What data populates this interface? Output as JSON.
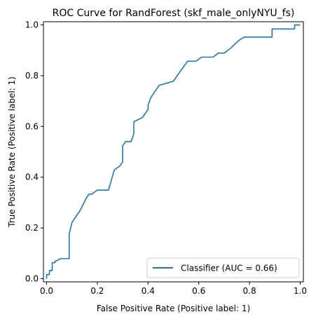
{
  "chart_data": {
    "type": "line",
    "title": "ROC Curve for RandForest (skf_male_onlyNYU_fs)",
    "xlabel": "False Positive Rate (Positive label: 1)",
    "ylabel": "True Positive Rate (Positive label: 1)",
    "xlim": [
      0,
      1
    ],
    "ylim": [
      0,
      1
    ],
    "grid": false,
    "legend_placement": "lower-right",
    "xticks": [
      {
        "value": 0.0,
        "label": "0.0"
      },
      {
        "value": 0.2,
        "label": "0.2"
      },
      {
        "value": 0.4,
        "label": "0.4"
      },
      {
        "value": 0.6,
        "label": "0.6"
      },
      {
        "value": 0.8,
        "label": "0.8"
      },
      {
        "value": 1.0,
        "label": "1.0"
      }
    ],
    "yticks": [
      {
        "value": 0.0,
        "label": "0.0"
      },
      {
        "value": 0.2,
        "label": "0.2"
      },
      {
        "value": 0.4,
        "label": "0.4"
      },
      {
        "value": 0.6,
        "label": "0.6"
      },
      {
        "value": 0.8,
        "label": "0.8"
      },
      {
        "value": 1.0,
        "label": "1.0"
      }
    ],
    "series": [
      {
        "name": "Classifier (AUC = 0.66)",
        "color": "#1f77b4",
        "x": [
          0.0,
          0.0,
          0.011,
          0.011,
          0.022,
          0.022,
          0.033,
          0.033,
          0.056,
          0.067,
          0.078,
          0.089,
          0.089,
          0.1,
          0.133,
          0.156,
          0.167,
          0.178,
          0.2,
          0.2,
          0.222,
          0.244,
          0.244,
          0.267,
          0.289,
          0.3,
          0.3,
          0.311,
          0.333,
          0.344,
          0.344,
          0.378,
          0.4,
          0.4,
          0.411,
          0.444,
          0.5,
          0.522,
          0.556,
          0.589,
          0.611,
          0.656,
          0.678,
          0.7,
          0.7,
          0.722,
          0.756,
          0.778,
          0.778,
          0.889,
          0.889,
          0.978,
          0.978,
          1.0
        ],
        "y": [
          0.0,
          0.016,
          0.016,
          0.032,
          0.032,
          0.063,
          0.063,
          0.068,
          0.079,
          0.079,
          0.079,
          0.079,
          0.175,
          0.222,
          0.27,
          0.317,
          0.333,
          0.333,
          0.349,
          0.349,
          0.349,
          0.349,
          0.349,
          0.429,
          0.444,
          0.46,
          0.524,
          0.54,
          0.54,
          0.571,
          0.619,
          0.635,
          0.667,
          0.683,
          0.714,
          0.762,
          0.778,
          0.81,
          0.857,
          0.857,
          0.873,
          0.873,
          0.889,
          0.889,
          0.889,
          0.905,
          0.937,
          0.952,
          0.952,
          0.952,
          0.984,
          0.984,
          1.0,
          1.0
        ]
      }
    ]
  }
}
